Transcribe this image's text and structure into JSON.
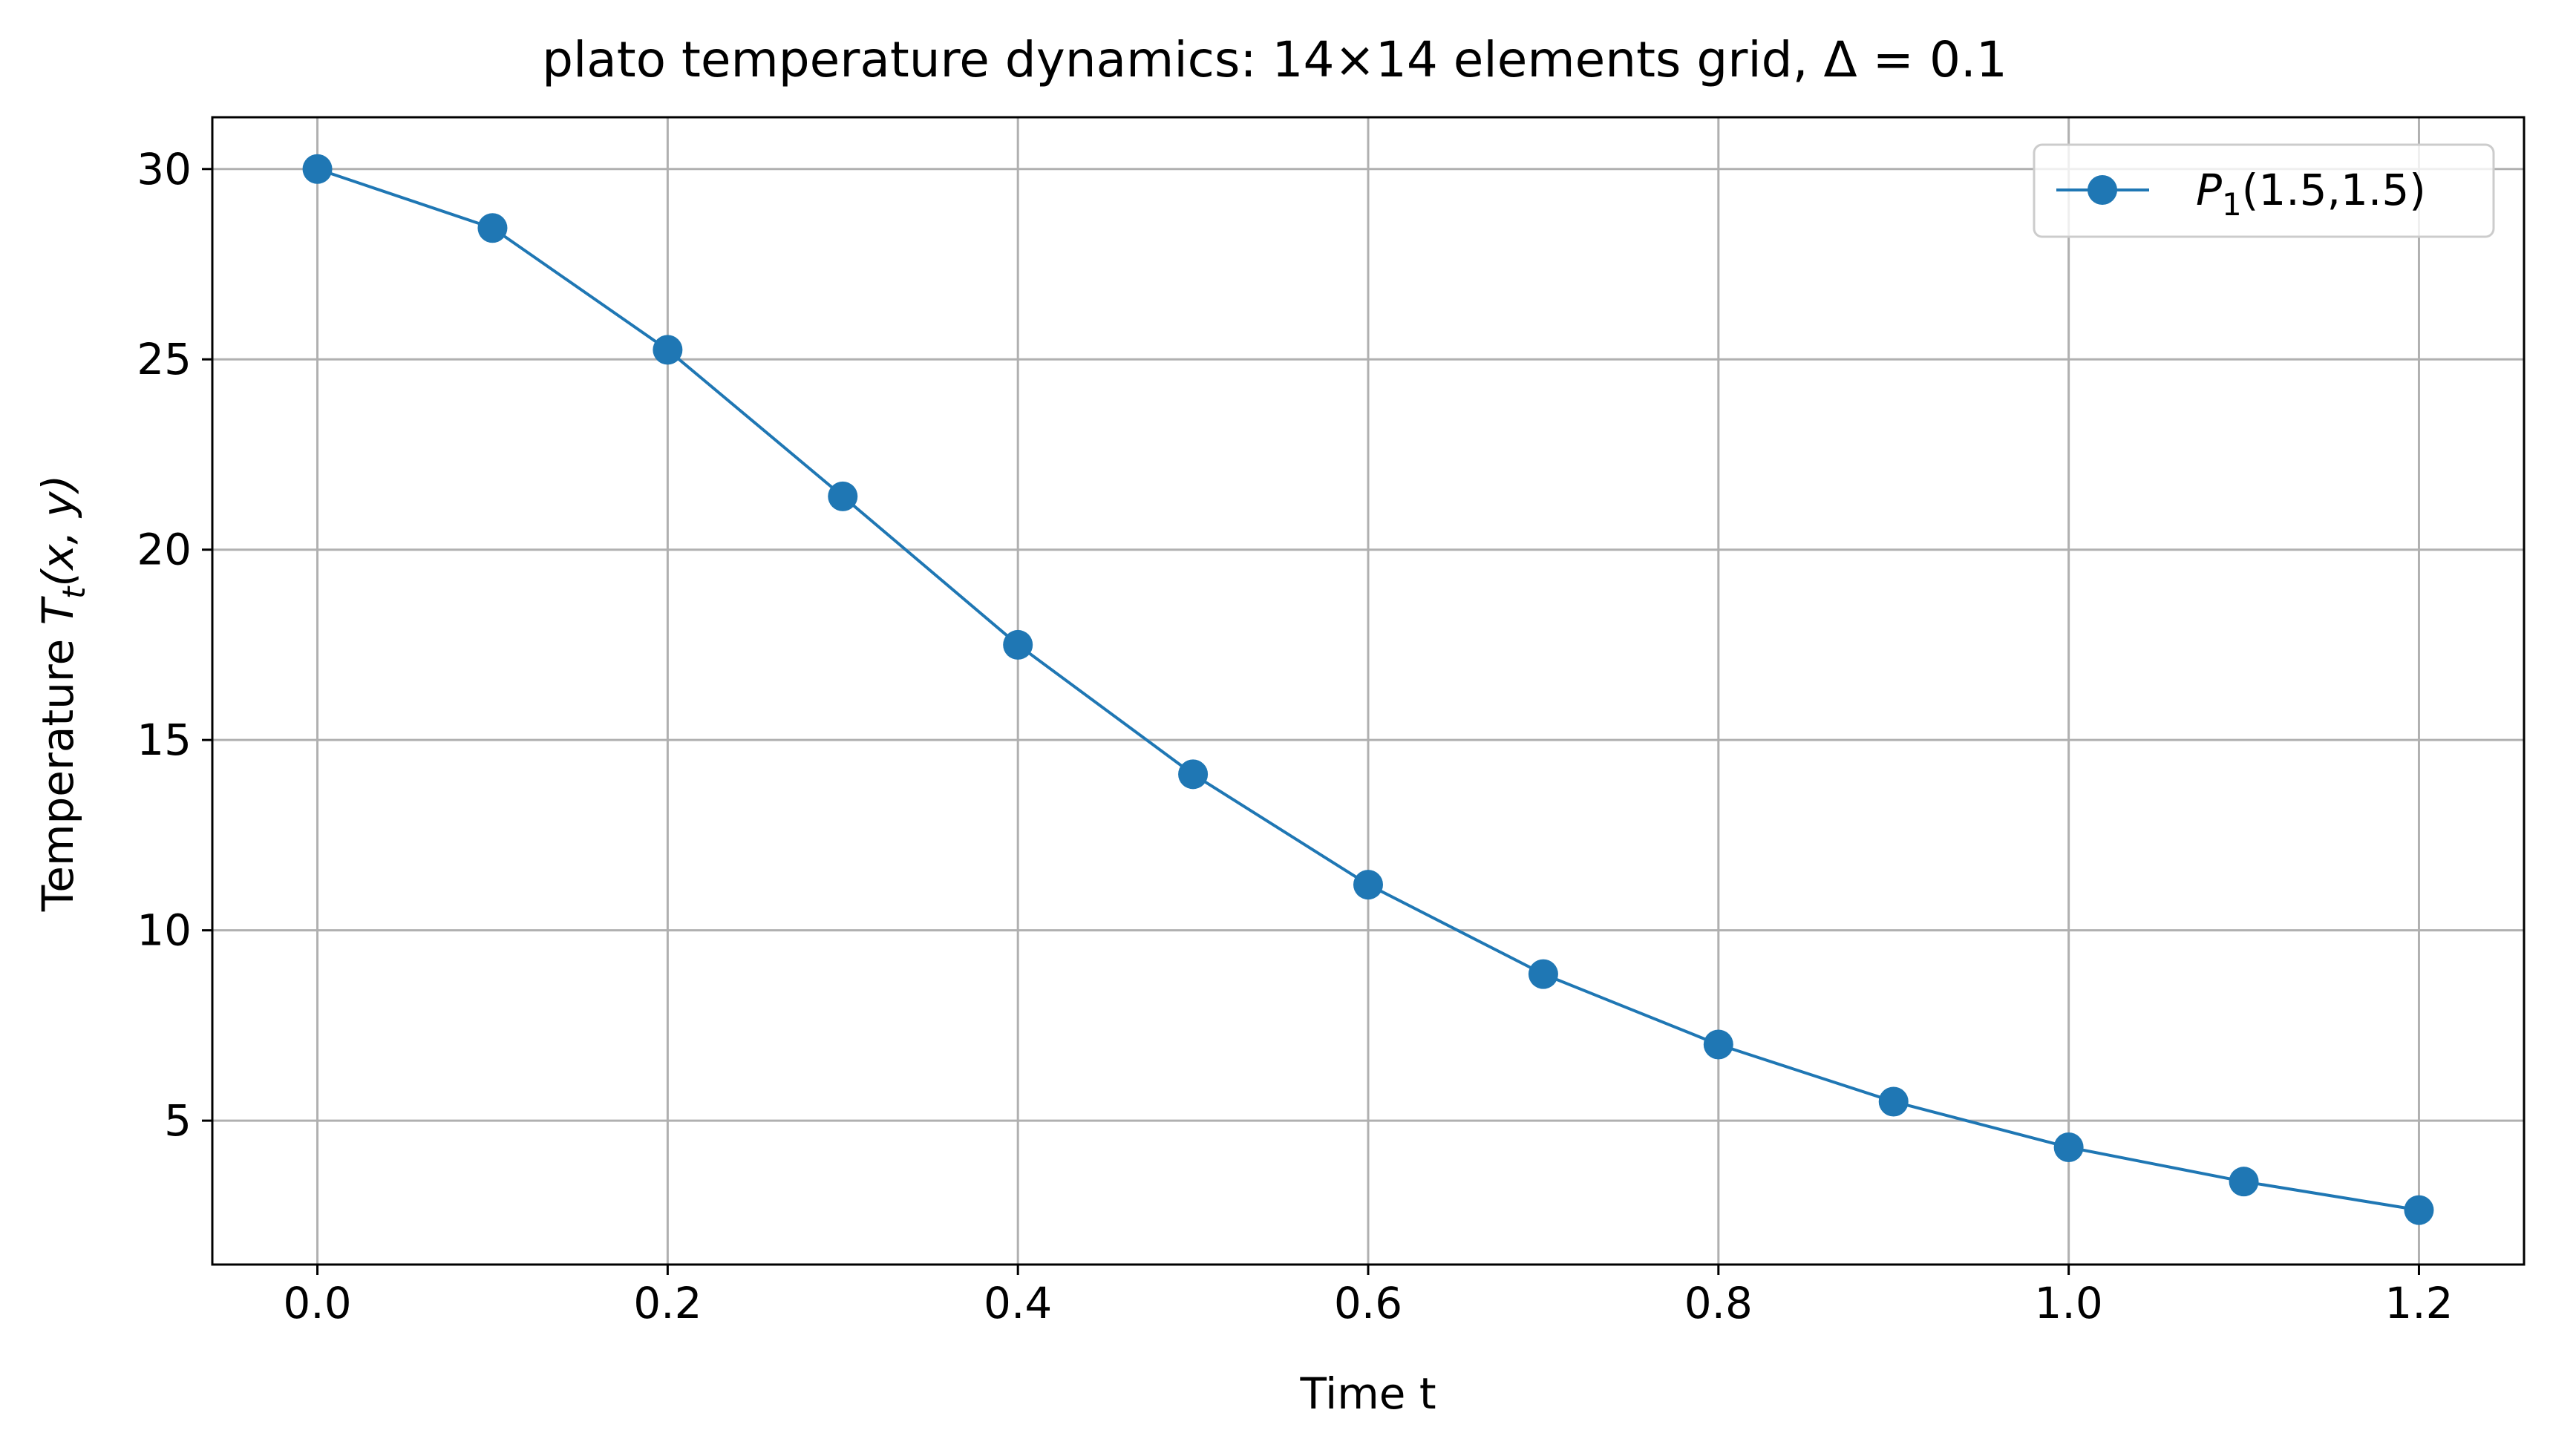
{
  "chart_data": {
    "type": "line",
    "title": "plato temperature dynamics: 14×14 elements grid, Δ = 0.1",
    "xlabel": "Time t",
    "ylabel": {
      "prefix": "Temperature ",
      "symbol": "T",
      "subscript": "t",
      "args": "(x, y)"
    },
    "xlim": [
      -0.06,
      1.26
    ],
    "ylim": [
      1.22,
      31.36
    ],
    "xticks": [
      0.0,
      0.2,
      0.4,
      0.6,
      0.8,
      1.0,
      1.2
    ],
    "xtick_labels": [
      "0.0",
      "0.2",
      "0.4",
      "0.6",
      "0.8",
      "1.0",
      "1.2"
    ],
    "yticks": [
      5,
      10,
      15,
      20,
      25,
      30
    ],
    "ytick_labels": [
      "5",
      "10",
      "15",
      "20",
      "25",
      "30"
    ],
    "grid": true,
    "legend_position": "top-right",
    "series": [
      {
        "name": {
          "symbol": "P",
          "subscript": "1",
          "args": "(1.5,1.5)"
        },
        "color": "#1f77b4",
        "marker": "circle",
        "x": [
          0.0,
          0.1,
          0.2,
          0.3,
          0.4,
          0.5,
          0.6,
          0.7,
          0.8,
          0.9,
          1.0,
          1.1,
          1.2
        ],
        "y": [
          30.0,
          28.45,
          25.25,
          21.4,
          17.5,
          14.1,
          11.2,
          8.85,
          7.0,
          5.5,
          4.3,
          3.4,
          2.65
        ]
      }
    ]
  }
}
